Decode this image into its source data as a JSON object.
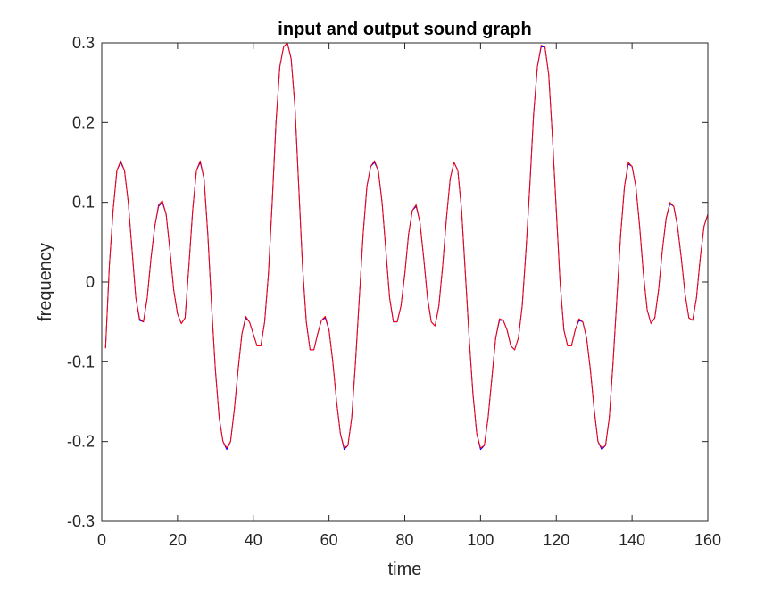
{
  "chart_data": {
    "type": "line",
    "title": "input and output sound graph",
    "xlabel": "time",
    "ylabel": "frequency",
    "xlim": [
      0,
      160
    ],
    "ylim": [
      -0.3,
      0.3
    ],
    "xticks": [
      0,
      20,
      40,
      60,
      80,
      100,
      120,
      140,
      160
    ],
    "yticks": [
      -0.3,
      -0.2,
      -0.1,
      0,
      0.1,
      0.2,
      0.3
    ],
    "xtick_labels": [
      "0",
      "20",
      "40",
      "60",
      "80",
      "100",
      "120",
      "140",
      "160"
    ],
    "ytick_labels": [
      "-0.3",
      "-0.2",
      "-0.1",
      "0",
      "0.1",
      "0.2",
      "0.3"
    ],
    "grid": false,
    "box": true,
    "series": [
      {
        "color": "#0000ff",
        "x": [
          1,
          2,
          3,
          4,
          5,
          6,
          7,
          8,
          9,
          10,
          11,
          12,
          13,
          14,
          15,
          16,
          17,
          18,
          19,
          20,
          21,
          22,
          23,
          24,
          25,
          26,
          27,
          28,
          29,
          30,
          31,
          32,
          33,
          34,
          35,
          36,
          37,
          38,
          39,
          40,
          41,
          42,
          43,
          44,
          45,
          46,
          47,
          48,
          49,
          50,
          51,
          52,
          53,
          54,
          55,
          56,
          57,
          58,
          59,
          60,
          61,
          62,
          63,
          64,
          65,
          66,
          67,
          68,
          69,
          70,
          71,
          72,
          73,
          74,
          75,
          76,
          77,
          78,
          79,
          80,
          81,
          82,
          83,
          84,
          85,
          86,
          87,
          88,
          89,
          90,
          91,
          92,
          93,
          94,
          95,
          96,
          97,
          98,
          99,
          100,
          101,
          102,
          103,
          104,
          105,
          106,
          107,
          108,
          109,
          110,
          111,
          112,
          113,
          114,
          115,
          116,
          117,
          118,
          119,
          120,
          121,
          122,
          123,
          124,
          125,
          126,
          127,
          128,
          129,
          130,
          131,
          132,
          133,
          134,
          135,
          136,
          137,
          138,
          139,
          140,
          141,
          142,
          143,
          144,
          145,
          146,
          147,
          148,
          149,
          150,
          151,
          152,
          153,
          154,
          155,
          156,
          157,
          158,
          159,
          160
        ],
        "y": [
          -0.083,
          0.02,
          0.09,
          0.14,
          0.15,
          0.14,
          0.1,
          0.04,
          -0.02,
          -0.048,
          -0.05,
          -0.02,
          0.03,
          0.07,
          0.095,
          0.1,
          0.085,
          0.04,
          -0.01,
          -0.04,
          -0.052,
          -0.045,
          0.02,
          0.09,
          0.14,
          0.15,
          0.13,
          0.06,
          -0.03,
          -0.11,
          -0.17,
          -0.2,
          -0.21,
          -0.2,
          -0.16,
          -0.11,
          -0.065,
          -0.045,
          -0.05,
          -0.065,
          -0.08,
          -0.08,
          -0.05,
          0.01,
          0.1,
          0.2,
          0.27,
          0.295,
          0.3,
          0.28,
          0.22,
          0.12,
          0.02,
          -0.05,
          -0.085,
          -0.085,
          -0.065,
          -0.048,
          -0.045,
          -0.06,
          -0.1,
          -0.15,
          -0.19,
          -0.21,
          -0.205,
          -0.17,
          -0.1,
          -0.02,
          0.06,
          0.12,
          0.145,
          0.15,
          0.14,
          0.1,
          0.04,
          -0.02,
          -0.05,
          -0.05,
          -0.03,
          0.01,
          0.06,
          0.09,
          0.095,
          0.075,
          0.03,
          -0.02,
          -0.05,
          -0.055,
          -0.03,
          0.02,
          0.08,
          0.13,
          0.15,
          0.14,
          0.09,
          0.01,
          -0.07,
          -0.14,
          -0.19,
          -0.21,
          -0.205,
          -0.17,
          -0.12,
          -0.07,
          -0.048,
          -0.048,
          -0.06,
          -0.08,
          -0.085,
          -0.07,
          -0.03,
          0.04,
          0.12,
          0.21,
          0.27,
          0.295,
          0.295,
          0.26,
          0.18,
          0.09,
          0.0,
          -0.06,
          -0.08,
          -0.08,
          -0.06,
          -0.048,
          -0.05,
          -0.07,
          -0.11,
          -0.16,
          -0.2,
          -0.21,
          -0.205,
          -0.17,
          -0.1,
          -0.02,
          0.06,
          0.12,
          0.148,
          0.145,
          0.12,
          0.07,
          0.01,
          -0.035,
          -0.052,
          -0.045,
          -0.01,
          0.04,
          0.08,
          0.098,
          0.095,
          0.07,
          0.03,
          -0.015,
          -0.045,
          -0.048,
          -0.02,
          0.03,
          0.07,
          0.085
        ]
      },
      {
        "color": "#ff0000",
        "x": [
          1,
          2,
          3,
          4,
          5,
          6,
          7,
          8,
          9,
          10,
          11,
          12,
          13,
          14,
          15,
          16,
          17,
          18,
          19,
          20,
          21,
          22,
          23,
          24,
          25,
          26,
          27,
          28,
          29,
          30,
          31,
          32,
          33,
          34,
          35,
          36,
          37,
          38,
          39,
          40,
          41,
          42,
          43,
          44,
          45,
          46,
          47,
          48,
          49,
          50,
          51,
          52,
          53,
          54,
          55,
          56,
          57,
          58,
          59,
          60,
          61,
          62,
          63,
          64,
          65,
          66,
          67,
          68,
          69,
          70,
          71,
          72,
          73,
          74,
          75,
          76,
          77,
          78,
          79,
          80,
          81,
          82,
          83,
          84,
          85,
          86,
          87,
          88,
          89,
          90,
          91,
          92,
          93,
          94,
          95,
          96,
          97,
          98,
          99,
          100,
          101,
          102,
          103,
          104,
          105,
          106,
          107,
          108,
          109,
          110,
          111,
          112,
          113,
          114,
          115,
          116,
          117,
          118,
          119,
          120,
          121,
          122,
          123,
          124,
          125,
          126,
          127,
          128,
          129,
          130,
          131,
          132,
          133,
          134,
          135,
          136,
          137,
          138,
          139,
          140,
          141,
          142,
          143,
          144,
          145,
          146,
          147,
          148,
          149,
          150,
          151,
          152,
          153,
          154,
          155,
          156,
          157,
          158,
          159,
          160
        ],
        "y": [
          -0.083,
          0.02,
          0.09,
          0.14,
          0.152,
          0.14,
          0.1,
          0.04,
          -0.02,
          -0.046,
          -0.05,
          -0.02,
          0.03,
          0.07,
          0.097,
          0.102,
          0.085,
          0.04,
          -0.01,
          -0.04,
          -0.052,
          -0.045,
          0.02,
          0.09,
          0.14,
          0.152,
          0.13,
          0.06,
          -0.03,
          -0.11,
          -0.17,
          -0.2,
          -0.208,
          -0.2,
          -0.16,
          -0.11,
          -0.065,
          -0.043,
          -0.05,
          -0.065,
          -0.08,
          -0.08,
          -0.05,
          0.01,
          0.1,
          0.2,
          0.27,
          0.295,
          0.3,
          0.28,
          0.22,
          0.12,
          0.02,
          -0.05,
          -0.085,
          -0.085,
          -0.065,
          -0.048,
          -0.043,
          -0.06,
          -0.1,
          -0.15,
          -0.19,
          -0.208,
          -0.205,
          -0.17,
          -0.1,
          -0.02,
          0.06,
          0.12,
          0.145,
          0.152,
          0.14,
          0.1,
          0.04,
          -0.02,
          -0.05,
          -0.05,
          -0.03,
          0.01,
          0.06,
          0.09,
          0.097,
          0.075,
          0.03,
          -0.02,
          -0.05,
          -0.055,
          -0.03,
          0.02,
          0.08,
          0.13,
          0.15,
          0.14,
          0.09,
          0.01,
          -0.07,
          -0.14,
          -0.19,
          -0.208,
          -0.205,
          -0.17,
          -0.12,
          -0.07,
          -0.046,
          -0.048,
          -0.06,
          -0.08,
          -0.085,
          -0.07,
          -0.03,
          0.04,
          0.12,
          0.21,
          0.27,
          0.297,
          0.295,
          0.26,
          0.18,
          0.09,
          0.0,
          -0.06,
          -0.08,
          -0.08,
          -0.06,
          -0.046,
          -0.05,
          -0.07,
          -0.11,
          -0.16,
          -0.2,
          -0.208,
          -0.205,
          -0.17,
          -0.1,
          -0.02,
          0.06,
          0.12,
          0.15,
          0.145,
          0.12,
          0.07,
          0.01,
          -0.035,
          -0.052,
          -0.045,
          -0.01,
          0.04,
          0.08,
          0.1,
          0.095,
          0.07,
          0.03,
          -0.015,
          -0.045,
          -0.048,
          -0.02,
          0.03,
          0.07,
          0.085
        ]
      }
    ]
  }
}
